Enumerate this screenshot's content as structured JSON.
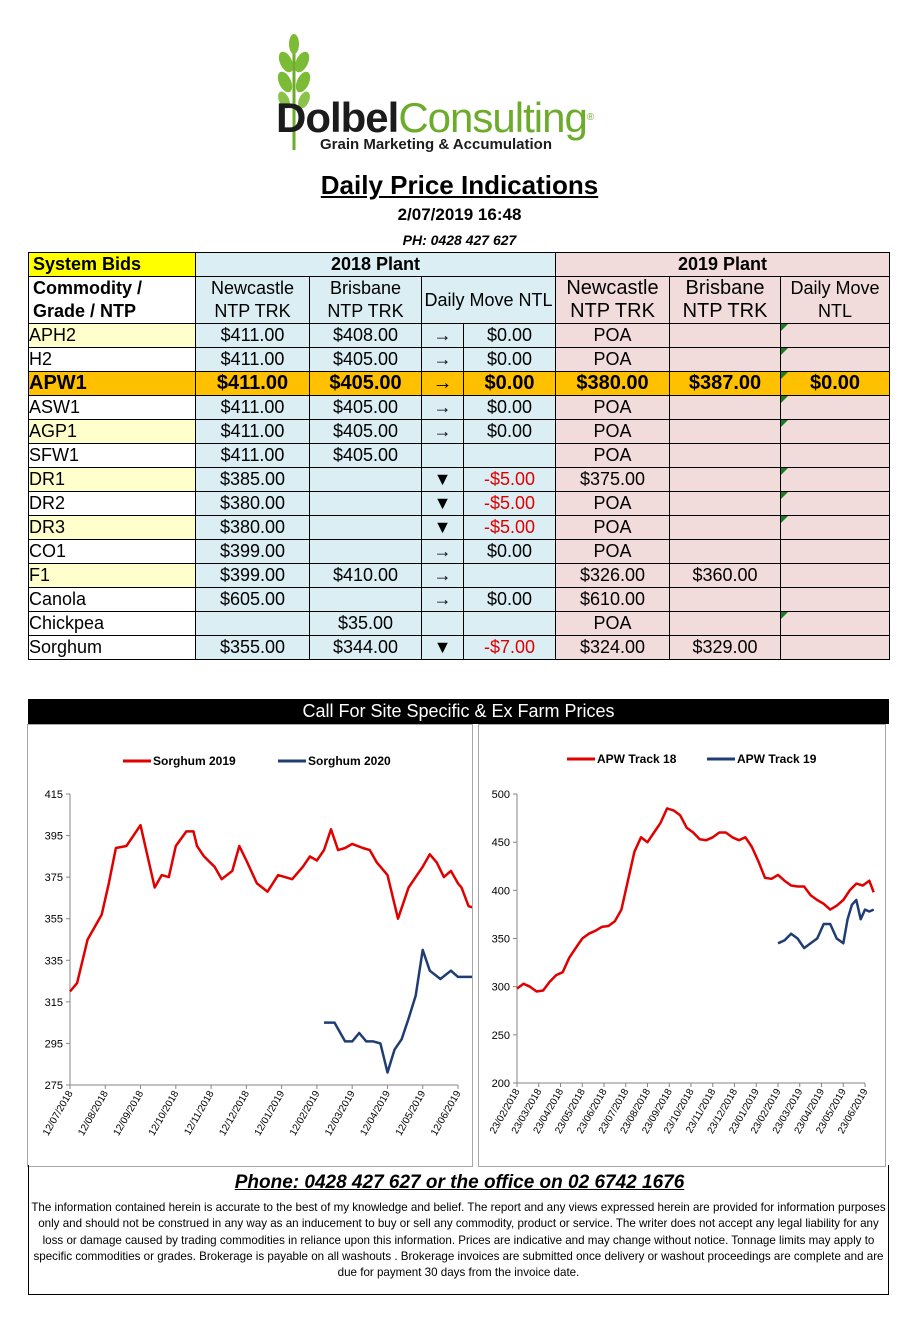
{
  "logo": {
    "part1": "Dolbel",
    "part2": "Consulting",
    "subtitle": "Grain Marketing & Accumulation"
  },
  "title": "Daily Price Indications",
  "datetime": "2/07/2019 16:48",
  "phone_top": "PH: 0428 427 627",
  "table": {
    "system_bids": "System Bids",
    "plant_2018": "2018 Plant",
    "plant_2019": "2019 Plant",
    "col_commodity": "Commodity / Grade / NTP",
    "col_newcastle": "Newcastle NTP TRK",
    "col_brisbane": "Brisbane NTP TRK",
    "col_daily_move": "Daily  Move NTL",
    "col_newcastle_19": "Newcastle NTP TRK",
    "col_brisbane_19": "Brisbane NTP TRK",
    "col_daily_move_19": "Daily Move NTL",
    "rows": [
      {
        "name": "APH2",
        "newcastle": "$411.00",
        "brisbane": "$408.00",
        "arrow": "→",
        "move": "$0.00",
        "n19": "POA",
        "b19": "",
        "m19": ""
      },
      {
        "name": "H2",
        "newcastle": "$411.00",
        "brisbane": "$405.00",
        "arrow": "→",
        "move": "$0.00",
        "n19": "POA",
        "b19": "",
        "m19": ""
      },
      {
        "name": "APW1",
        "newcastle": "$411.00",
        "brisbane": "$405.00",
        "arrow": "→",
        "move": "$0.00",
        "n19": "$380.00",
        "b19": "$387.00",
        "m19": "$0.00"
      },
      {
        "name": "ASW1",
        "newcastle": "$411.00",
        "brisbane": "$405.00",
        "arrow": "→",
        "move": "$0.00",
        "n19": "POA",
        "b19": "",
        "m19": ""
      },
      {
        "name": "AGP1",
        "newcastle": "$411.00",
        "brisbane": "$405.00",
        "arrow": "→",
        "move": "$0.00",
        "n19": "POA",
        "b19": "",
        "m19": ""
      },
      {
        "name": "SFW1",
        "newcastle": "$411.00",
        "brisbane": "$405.00",
        "arrow": "",
        "move": "",
        "n19": "POA",
        "b19": "",
        "m19": ""
      },
      {
        "name": "DR1",
        "newcastle": "$385.00",
        "brisbane": "",
        "arrow": "▼",
        "move": "-$5.00",
        "n19": "$375.00",
        "b19": "",
        "m19": ""
      },
      {
        "name": "DR2",
        "newcastle": "$380.00",
        "brisbane": "",
        "arrow": "▼",
        "move": "-$5.00",
        "n19": "POA",
        "b19": "",
        "m19": ""
      },
      {
        "name": "DR3",
        "newcastle": "$380.00",
        "brisbane": "",
        "arrow": "▼",
        "move": "-$5.00",
        "n19": "POA",
        "b19": "",
        "m19": ""
      },
      {
        "name": "CO1",
        "newcastle": "$399.00",
        "brisbane": "",
        "arrow": "→",
        "move": "$0.00",
        "n19": "POA",
        "b19": "",
        "m19": ""
      },
      {
        "name": "F1",
        "newcastle": "$399.00",
        "brisbane": "$410.00",
        "arrow": "→",
        "move": "",
        "n19": "$326.00",
        "b19": "$360.00",
        "m19": ""
      },
      {
        "name": "Canola",
        "newcastle": "$605.00",
        "brisbane": "",
        "arrow": "→",
        "move": "$0.00",
        "n19": "$610.00",
        "b19": "",
        "m19": ""
      },
      {
        "name": "Chickpea",
        "newcastle": "",
        "brisbane": "$35.00",
        "arrow": "",
        "move": "",
        "n19": "POA",
        "b19": "",
        "m19": ""
      },
      {
        "name": "Sorghum",
        "newcastle": "$355.00",
        "brisbane": "$344.00",
        "arrow": "▼",
        "move": "-$7.00",
        "n19": "$324.00",
        "b19": "$329.00",
        "m19": ""
      }
    ]
  },
  "call_bar": "Call For Site Specific & Ex Farm Prices",
  "phone_bottom": "Phone: 0428 427 627 or the office on 02 6742 1676",
  "disclaimer": "The information contained herein is accurate to the best of my knowledge and belief.  The report and any views expressed herein are provided for information purposes only and should not be construed in any way as an inducement to buy or sell any commodity, product or service. The writer does not accept any legal liability for any loss or damage caused by trading commodities in reliance upon this information. Prices are indicative and may change without notice. Tonnage limits may apply to specific commodities or grades.  Brokerage is payable on all washouts . Brokerage invoices are submitted once delivery or washout proceedings are complete and are due for payment 30 days from the invoice date.",
  "colors": {
    "red": "#e00000",
    "navy": "#1f3d73",
    "blue_cell": "#daeef3",
    "pink_cell": "#f2dcdb",
    "yellow_cell": "#ffffcc",
    "highlight": "#ffc000",
    "logo_green": "#6dab2b"
  },
  "chart_data": [
    {
      "type": "line",
      "ylim": [
        275,
        415
      ],
      "yticks": [
        275,
        295,
        315,
        335,
        355,
        375,
        395,
        415
      ],
      "xticks": [
        "12/07/2018",
        "12/08/2018",
        "12/09/2018",
        "12/10/2018",
        "12/11/2018",
        "12/12/2018",
        "12/01/2019",
        "12/02/2019",
        "12/03/2019",
        "12/04/2019",
        "12/05/2019",
        "12/06/2019"
      ],
      "series": [
        {
          "name": "Sorghum 2019",
          "color": "#e00000",
          "x": [
            0,
            0.2,
            0.5,
            0.9,
            1.1,
            1.3,
            1.6,
            2.0,
            2.2,
            2.4,
            2.6,
            2.8,
            3.0,
            3.3,
            3.5,
            3.6,
            3.8,
            4.1,
            4.3,
            4.6,
            4.8,
            5.0,
            5.3,
            5.6,
            5.9,
            6.3,
            6.6,
            6.8,
            7.0,
            7.2,
            7.4,
            7.6,
            7.8,
            8.0,
            8.3,
            8.5,
            8.7,
            9.0,
            9.3,
            9.6,
            9.8,
            10.0,
            10.2,
            10.4,
            10.6,
            10.8,
            11.0,
            11.1,
            11.3,
            11.5,
            11.6
          ],
          "y": [
            320,
            324,
            345,
            357,
            372,
            389,
            390,
            400,
            385,
            370,
            376,
            375,
            390,
            397,
            397,
            390,
            385,
            380,
            374,
            378,
            390,
            383,
            372,
            368,
            376,
            374,
            380,
            385,
            383,
            388,
            398,
            388,
            389,
            391,
            389,
            388,
            382,
            376,
            355,
            370,
            375,
            380,
            386,
            382,
            375,
            378,
            372,
            370,
            361,
            360,
            354
          ]
        },
        {
          "name": "Sorghum 2020",
          "color": "#1f3d73",
          "x": [
            7.2,
            7.5,
            7.8,
            8.0,
            8.2,
            8.4,
            8.6,
            8.8,
            9.0,
            9.2,
            9.4,
            9.6,
            9.8,
            10.0,
            10.2,
            10.5,
            10.8,
            11.0,
            11.2,
            11.5,
            11.6
          ],
          "y": [
            305,
            305,
            296,
            296,
            300,
            296,
            296,
            295,
            281,
            292,
            297,
            307,
            318,
            340,
            330,
            326,
            330,
            327,
            327,
            327,
            324
          ]
        }
      ]
    },
    {
      "type": "line",
      "ylim": [
        200,
        500
      ],
      "yticks": [
        200,
        250,
        300,
        350,
        400,
        450,
        500
      ],
      "xticks": [
        "23/02/2018",
        "23/03/2018",
        "23/04/2018",
        "23/05/2018",
        "23/06/2018",
        "23/07/2018",
        "23/08/2018",
        "23/09/2018",
        "23/10/2018",
        "23/11/2018",
        "23/12/2018",
        "23/01/2019",
        "23/02/2019",
        "23/03/2019",
        "23/04/2019",
        "23/05/2019",
        "23/06/2019"
      ],
      "series": [
        {
          "name": "APW Track 18",
          "color": "#e00000",
          "x": [
            0,
            0.3,
            0.6,
            0.9,
            1.2,
            1.5,
            1.8,
            2.1,
            2.4,
            2.7,
            3.0,
            3.3,
            3.6,
            3.9,
            4.2,
            4.5,
            4.8,
            5.1,
            5.4,
            5.7,
            6.0,
            6.3,
            6.6,
            6.9,
            7.2,
            7.5,
            7.8,
            8.1,
            8.4,
            8.7,
            9.0,
            9.3,
            9.6,
            9.9,
            10.2,
            10.5,
            10.8,
            11.1,
            11.4,
            11.7,
            12.0,
            12.3,
            12.6,
            12.9,
            13.2,
            13.5,
            13.8,
            14.1,
            14.4,
            14.7,
            15.0,
            15.3,
            15.6,
            15.9,
            16.2,
            16.4
          ],
          "y": [
            298,
            303,
            300,
            295,
            296,
            305,
            312,
            315,
            330,
            340,
            350,
            355,
            358,
            362,
            363,
            368,
            380,
            410,
            440,
            455,
            450,
            460,
            470,
            485,
            483,
            478,
            465,
            460,
            453,
            452,
            455,
            460,
            460,
            455,
            452,
            455,
            445,
            430,
            413,
            412,
            416,
            410,
            405,
            404,
            404,
            395,
            390,
            386,
            380,
            384,
            390,
            400,
            407,
            405,
            410,
            398
          ]
        },
        {
          "name": "APW Track 19",
          "color": "#1f3d73",
          "x": [
            12.0,
            12.3,
            12.6,
            12.9,
            13.2,
            13.5,
            13.8,
            14.1,
            14.4,
            14.7,
            15.0,
            15.2,
            15.4,
            15.6,
            15.8,
            16.0,
            16.2,
            16.4
          ],
          "y": [
            345,
            348,
            355,
            350,
            340,
            345,
            350,
            365,
            365,
            350,
            345,
            370,
            385,
            390,
            370,
            380,
            378,
            380
          ]
        }
      ]
    }
  ]
}
